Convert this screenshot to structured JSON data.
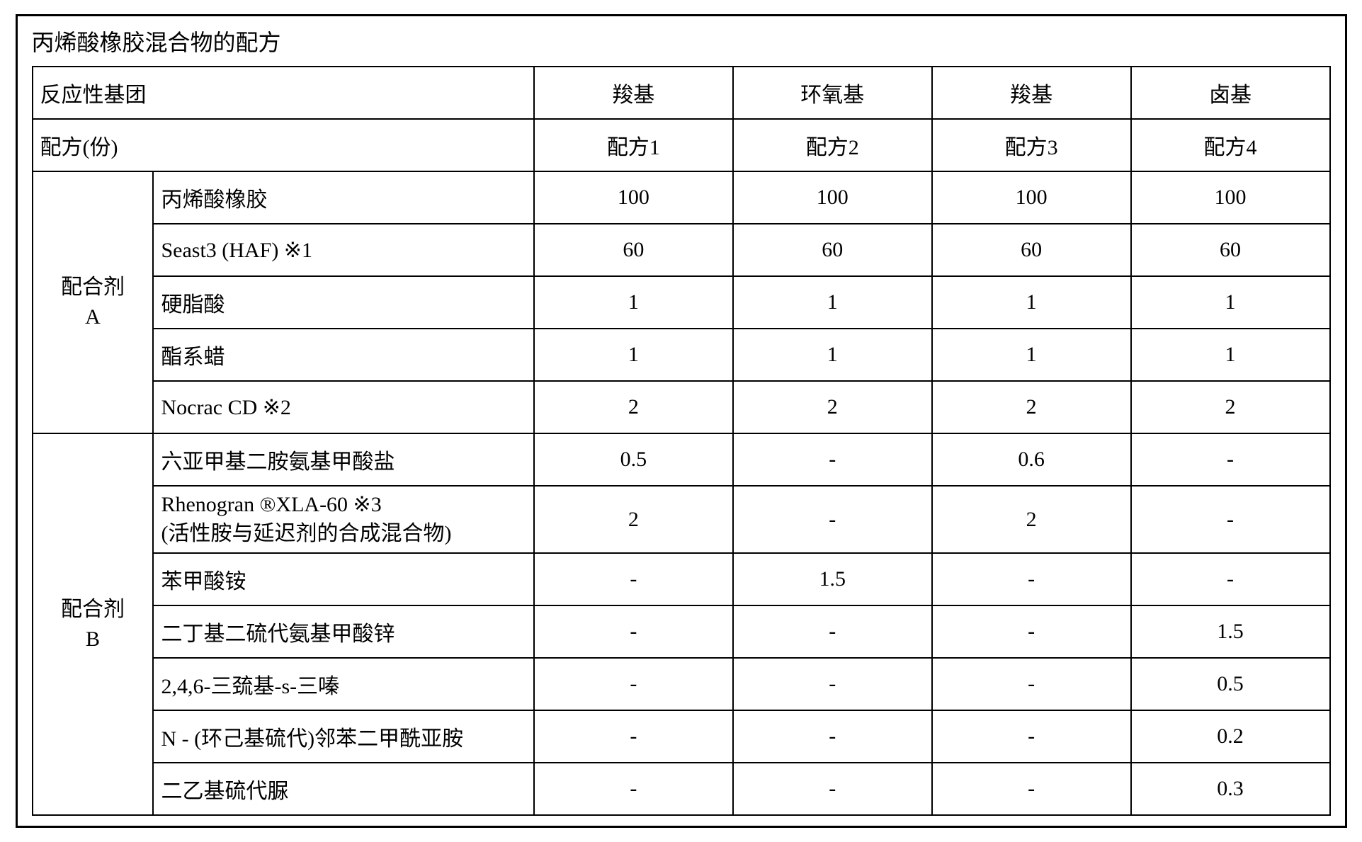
{
  "title": "丙烯酸橡胶混合物的配方",
  "header1": {
    "label": "反应性基团",
    "cols": [
      "羧基",
      "环氧基",
      "羧基",
      "卤基"
    ]
  },
  "header2": {
    "label": "配方(份)",
    "cols": [
      "配方1",
      "配方2",
      "配方3",
      "配方4"
    ]
  },
  "groupA": {
    "label_line1": "配合剂",
    "label_line2": "A",
    "rows": [
      {
        "name": "丙烯酸橡胶",
        "vals": [
          "100",
          "100",
          "100",
          "100"
        ]
      },
      {
        "name": "Seast3 (HAF) ※1",
        "vals": [
          "60",
          "60",
          "60",
          "60"
        ]
      },
      {
        "name": "硬脂酸",
        "vals": [
          "1",
          "1",
          "1",
          "1"
        ]
      },
      {
        "name": "酯系蜡",
        "vals": [
          "1",
          "1",
          "1",
          "1"
        ]
      },
      {
        "name": "Nocrac CD ※2",
        "vals": [
          "2",
          "2",
          "2",
          "2"
        ]
      }
    ]
  },
  "groupB": {
    "label_line1": "配合剂",
    "label_line2": "B",
    "rows": [
      {
        "name": "六亚甲基二胺氨基甲酸盐",
        "vals": [
          "0.5",
          "-",
          "0.6",
          "-"
        ]
      },
      {
        "name_l1": "Rhenogran ®XLA-60 ※3",
        "name_l2": "(活性胺与延迟剂的合成混合物)",
        "vals": [
          "2",
          "-",
          "2",
          "-"
        ],
        "twoLine": true
      },
      {
        "name": "苯甲酸铵",
        "vals": [
          "-",
          "1.5",
          "-",
          "-"
        ]
      },
      {
        "name": "二丁基二硫代氨基甲酸锌",
        "vals": [
          "-",
          "-",
          "-",
          "1.5"
        ]
      },
      {
        "name": "2,4,6-三巯基-s-三嗪",
        "vals": [
          "-",
          "-",
          "-",
          "0.5"
        ]
      },
      {
        "name": "N - (环己基硫代)邻苯二甲酰亚胺",
        "vals": [
          "-",
          "-",
          "-",
          "0.2"
        ]
      },
      {
        "name": "二乙基硫代脲",
        "vals": [
          "-",
          "-",
          "-",
          "0.3"
        ]
      }
    ]
  }
}
